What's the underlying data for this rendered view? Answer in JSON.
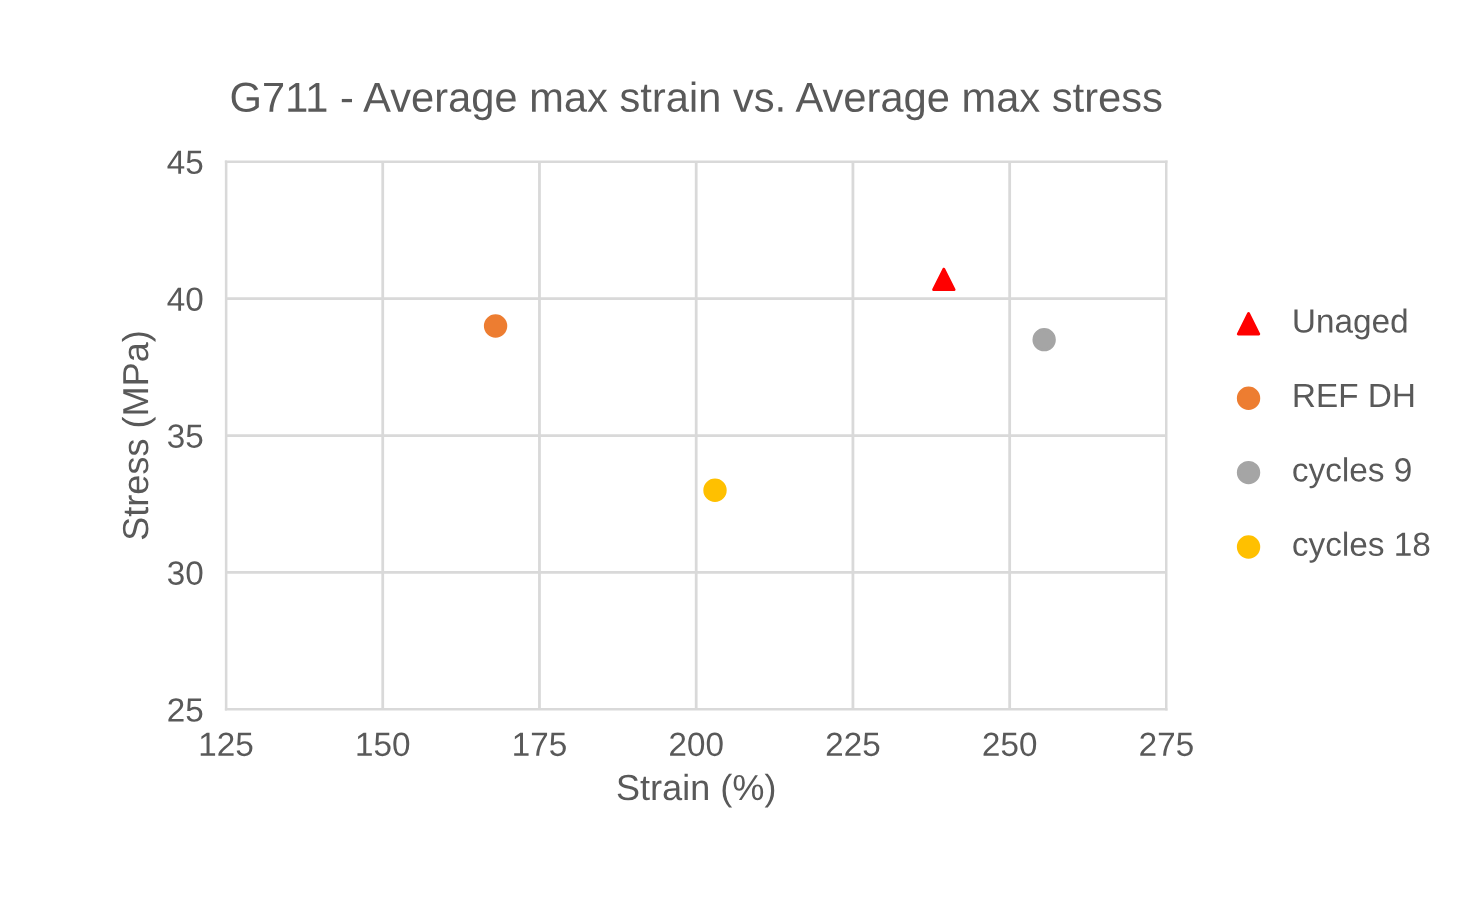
{
  "chart_data": {
    "type": "scatter",
    "title": "G711 - Average max strain vs. Average max stress",
    "xlabel": "Strain (%)",
    "ylabel": "Stress (MPa)",
    "series": [
      {
        "name": "Unaged",
        "color": "#ff0000",
        "marker": "triangle",
        "x": [
          239.5
        ],
        "values": [
          40.7
        ]
      },
      {
        "name": "REF DH",
        "color": "#ed7d31",
        "marker": "circle",
        "x": [
          168
        ],
        "values": [
          39.0
        ]
      },
      {
        "name": "cycles 9",
        "color": "#a5a5a5",
        "marker": "circle",
        "x": [
          255.5
        ],
        "values": [
          38.5
        ]
      },
      {
        "name": "cycles 18",
        "color": "#ffc000",
        "marker": "circle",
        "x": [
          203
        ],
        "values": [
          33.0
        ]
      }
    ],
    "xlim": [
      125,
      275
    ],
    "xticks": [
      125,
      150,
      175,
      200,
      225,
      250,
      275
    ],
    "ylim": [
      25,
      45
    ],
    "yticks": [
      25,
      30,
      35,
      40,
      45
    ],
    "grid": true,
    "legend": "right"
  }
}
